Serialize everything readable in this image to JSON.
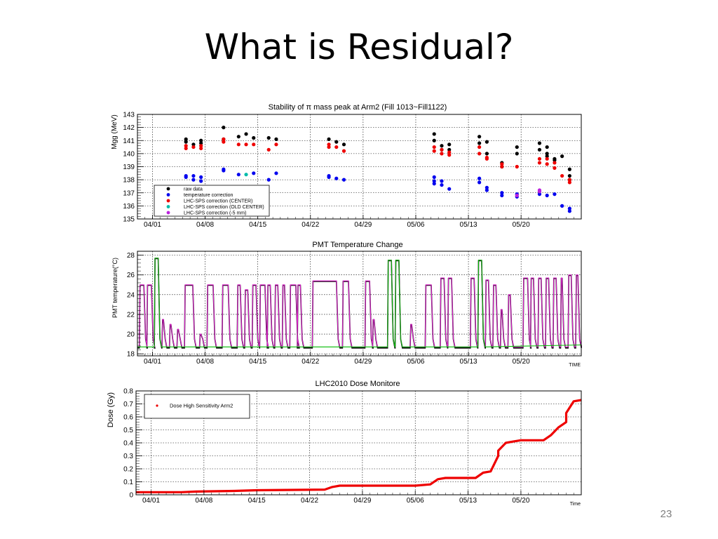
{
  "slide": {
    "title": "What is Residual?",
    "page_number": "23"
  },
  "colors": {
    "black": "#000000",
    "blue": "#0000ee",
    "red": "#ee0000",
    "green": "#00bb00",
    "magenta": "#dd22cc",
    "cyan": "#00bbaa",
    "purple": "#bb22dd"
  },
  "chart_data": [
    {
      "type": "scatter",
      "title": "Stability of π mass peak at Arm2 (Fill 1013~Fill1122)",
      "ylabel": "Mgg (MeV)",
      "xlabel": "",
      "xlim": [
        "2010-03-30",
        "2010-05-28"
      ],
      "ylim": [
        135,
        143
      ],
      "xticks": [
        "04/01",
        "04/08",
        "04/15",
        "04/22",
        "04/29",
        "05/06",
        "05/13",
        "05/20"
      ],
      "yticks": [
        "135",
        "136",
        "137",
        "138",
        "139",
        "140",
        "141",
        "142",
        "143"
      ],
      "grid": true,
      "legend_position": "bottom-left",
      "series": [
        {
          "name": "raw data",
          "color": "#000000",
          "points": [
            [
              "2010-04-05",
              141.1
            ],
            [
              "2010-04-05",
              140.9
            ],
            [
              "2010-04-06",
              140.7
            ],
            [
              "2010-04-07",
              141.0
            ],
            [
              "2010-04-07",
              140.8
            ],
            [
              "2010-04-10",
              142.0
            ],
            [
              "2010-04-10",
              141.1
            ],
            [
              "2010-04-12",
              141.3
            ],
            [
              "2010-04-13",
              141.5
            ],
            [
              "2010-04-14",
              141.2
            ],
            [
              "2010-04-16",
              141.2
            ],
            [
              "2010-04-17",
              141.1
            ],
            [
              "2010-04-24",
              141.1
            ],
            [
              "2010-04-25",
              140.9
            ],
            [
              "2010-04-26",
              140.7
            ],
            [
              "2010-05-08",
              141.5
            ],
            [
              "2010-05-08",
              141.0
            ],
            [
              "2010-05-09",
              140.3
            ],
            [
              "2010-05-09",
              140.6
            ],
            [
              "2010-05-10",
              140.7
            ],
            [
              "2010-05-10",
              140.3
            ],
            [
              "2010-05-14",
              141.3
            ],
            [
              "2010-05-14",
              140.8
            ],
            [
              "2010-05-15",
              140.9
            ],
            [
              "2010-05-15",
              140.0
            ],
            [
              "2010-05-17",
              139.3
            ],
            [
              "2010-05-17",
              139.0
            ],
            [
              "2010-05-19",
              140.5
            ],
            [
              "2010-05-19",
              140.0
            ],
            [
              "2010-05-22",
              140.8
            ],
            [
              "2010-05-22",
              140.3
            ],
            [
              "2010-05-23",
              140.5
            ],
            [
              "2010-05-23",
              140.0
            ],
            [
              "2010-05-23",
              139.8
            ],
            [
              "2010-05-24",
              139.6
            ],
            [
              "2010-05-24",
              139.5
            ],
            [
              "2010-05-25",
              139.8
            ],
            [
              "2010-05-26",
              138.8
            ],
            [
              "2010-05-26",
              138.3
            ],
            [
              "2010-05-26",
              138.0
            ]
          ]
        },
        {
          "name": "temperature correction",
          "color": "#0000ee",
          "points": [
            [
              "2010-04-05",
              138.3
            ],
            [
              "2010-04-05",
              138.2
            ],
            [
              "2010-04-06",
              138.3
            ],
            [
              "2010-04-06",
              138.0
            ],
            [
              "2010-04-07",
              138.2
            ],
            [
              "2010-04-07",
              137.9
            ],
            [
              "2010-04-10",
              138.8
            ],
            [
              "2010-04-10",
              138.7
            ],
            [
              "2010-04-12",
              138.4
            ],
            [
              "2010-04-14",
              138.5
            ],
            [
              "2010-04-16",
              138.0
            ],
            [
              "2010-04-17",
              138.5
            ],
            [
              "2010-04-24",
              138.3
            ],
            [
              "2010-04-24",
              138.2
            ],
            [
              "2010-04-25",
              138.1
            ],
            [
              "2010-04-26",
              138.0
            ],
            [
              "2010-05-08",
              138.2
            ],
            [
              "2010-05-08",
              137.9
            ],
            [
              "2010-05-08",
              137.7
            ],
            [
              "2010-05-09",
              137.9
            ],
            [
              "2010-05-09",
              137.6
            ],
            [
              "2010-05-10",
              137.3
            ],
            [
              "2010-05-14",
              138.1
            ],
            [
              "2010-05-14",
              137.8
            ],
            [
              "2010-05-15",
              137.4
            ],
            [
              "2010-05-15",
              137.2
            ],
            [
              "2010-05-17",
              137.0
            ],
            [
              "2010-05-17",
              136.8
            ],
            [
              "2010-05-19",
              136.9
            ],
            [
              "2010-05-19",
              136.7
            ],
            [
              "2010-05-22",
              137.1
            ],
            [
              "2010-05-22",
              136.9
            ],
            [
              "2010-05-23",
              136.8
            ],
            [
              "2010-05-24",
              136.9
            ],
            [
              "2010-05-25",
              136.0
            ],
            [
              "2010-05-26",
              135.8
            ],
            [
              "2010-05-26",
              135.6
            ]
          ]
        },
        {
          "name": "LHC-SPS correction (CENTER)",
          "color": "#ee0000",
          "points": [
            [
              "2010-04-05",
              140.6
            ],
            [
              "2010-04-05",
              140.4
            ],
            [
              "2010-04-06",
              140.5
            ],
            [
              "2010-04-07",
              140.6
            ],
            [
              "2010-04-07",
              140.4
            ],
            [
              "2010-04-10",
              141.1
            ],
            [
              "2010-04-10",
              140.9
            ],
            [
              "2010-04-12",
              140.7
            ],
            [
              "2010-04-13",
              140.7
            ],
            [
              "2010-04-14",
              140.7
            ],
            [
              "2010-04-16",
              140.3
            ],
            [
              "2010-04-17",
              140.7
            ],
            [
              "2010-04-24",
              140.7
            ],
            [
              "2010-04-24",
              140.5
            ],
            [
              "2010-04-25",
              140.5
            ],
            [
              "2010-04-26",
              140.2
            ],
            [
              "2010-05-08",
              140.5
            ],
            [
              "2010-05-08",
              140.2
            ],
            [
              "2010-05-09",
              140.3
            ],
            [
              "2010-05-09",
              140.0
            ],
            [
              "2010-05-10",
              140.1
            ],
            [
              "2010-05-10",
              139.9
            ],
            [
              "2010-05-14",
              140.5
            ],
            [
              "2010-05-14",
              140.0
            ],
            [
              "2010-05-15",
              139.7
            ],
            [
              "2010-05-15",
              139.6
            ],
            [
              "2010-05-17",
              139.2
            ],
            [
              "2010-05-17",
              139.0
            ],
            [
              "2010-05-19",
              139.0
            ],
            [
              "2010-05-22",
              139.6
            ],
            [
              "2010-05-22",
              139.3
            ],
            [
              "2010-05-23",
              139.6
            ],
            [
              "2010-05-23",
              139.2
            ],
            [
              "2010-05-24",
              139.3
            ],
            [
              "2010-05-24",
              138.9
            ],
            [
              "2010-05-25",
              138.3
            ],
            [
              "2010-05-26",
              138.0
            ],
            [
              "2010-05-26",
              137.8
            ]
          ]
        },
        {
          "name": "LHC-SPS correction (OLD CENTER)",
          "color": "#00bbaa",
          "points": [
            [
              "2010-04-13",
              138.4
            ]
          ]
        },
        {
          "name": "LHC-SPS correction (-5 mm)",
          "color": "#bb22dd",
          "points": [
            [
              "2010-05-19",
              136.8
            ],
            [
              "2010-05-22",
              137.2
            ],
            [
              "2010-05-22",
              137.1
            ]
          ]
        }
      ]
    },
    {
      "type": "line",
      "title": "PMT Temperature Change",
      "ylabel": "PMT temperature(°C)",
      "xlabel": "TIME",
      "xlim": [
        "2010-03-30",
        "2010-05-28"
      ],
      "ylim": [
        17.8,
        28.4
      ],
      "xticks": [
        "04/01",
        "04/08",
        "04/15",
        "04/22",
        "04/29",
        "05/06",
        "05/13",
        "05/20"
      ],
      "yticks": [
        "18",
        "20",
        "22",
        "24",
        "26",
        "28"
      ],
      "grid": true,
      "baseline": 18.6,
      "series_colors": [
        "#000000",
        "#dd22cc",
        "#00bb00"
      ],
      "peaks": [
        [
          "2010-03-30",
          25.0,
          0.7
        ],
        [
          "2010-03-31",
          25.0,
          0.7
        ],
        [
          "2010-04-01",
          27.7,
          0.6
        ],
        [
          "2010-04-02",
          21.5,
          0.3
        ],
        [
          "2010-04-03",
          21.0,
          0.3
        ],
        [
          "2010-04-04",
          20.5,
          0.3
        ],
        [
          "2010-04-05",
          25.0,
          1.2
        ],
        [
          "2010-04-07",
          20.0,
          0.3
        ],
        [
          "2010-04-08",
          25.0,
          0.9
        ],
        [
          "2010-04-10",
          25.0,
          0.9
        ],
        [
          "2010-04-12",
          25.0,
          0.5
        ],
        [
          "2010-04-13",
          24.5,
          0.5
        ],
        [
          "2010-04-14",
          25.0,
          0.6
        ],
        [
          "2010-04-15",
          25.0,
          0.8
        ],
        [
          "2010-04-16",
          25.0,
          0.5
        ],
        [
          "2010-04-17",
          25.0,
          0.5
        ],
        [
          "2010-04-18",
          25.0,
          0.4
        ],
        [
          "2010-04-19",
          25.0,
          0.9
        ],
        [
          "2010-04-20",
          25.0,
          0.5
        ],
        [
          "2010-04-22",
          25.4,
          3.3
        ],
        [
          "2010-04-26",
          25.4,
          0.9
        ],
        [
          "2010-04-29",
          25.4,
          0.7
        ],
        [
          "2010-04-30",
          21.5,
          0.3
        ],
        [
          "2010-05-02",
          27.5,
          0.6
        ],
        [
          "2010-05-03",
          27.5,
          0.6
        ],
        [
          "2010-05-05",
          21.0,
          0.3
        ],
        [
          "2010-05-07",
          25.0,
          0.9
        ],
        [
          "2010-05-09",
          25.7,
          0.6
        ],
        [
          "2010-05-10",
          25.7,
          0.6
        ],
        [
          "2010-05-13",
          25.7,
          0.6
        ],
        [
          "2010-05-14",
          27.5,
          0.6
        ],
        [
          "2010-05-15",
          25.5,
          0.5
        ],
        [
          "2010-05-16",
          25.0,
          0.5
        ],
        [
          "2010-05-17",
          22.5,
          0.3
        ],
        [
          "2010-05-18",
          24.0,
          0.4
        ],
        [
          "2010-05-20",
          25.7,
          0.7
        ],
        [
          "2010-05-21",
          25.7,
          0.5
        ],
        [
          "2010-05-22",
          25.7,
          0.5
        ],
        [
          "2010-05-23",
          25.7,
          0.5
        ],
        [
          "2010-05-24",
          25.7,
          0.5
        ],
        [
          "2010-05-25",
          25.7,
          0.3
        ],
        [
          "2010-05-26",
          26.0,
          0.5
        ],
        [
          "2010-05-27",
          26.0,
          0.4
        ]
      ]
    },
    {
      "type": "line",
      "title": "LHC2010 Dose Monitore",
      "ylabel": "Dose (Gy)",
      "xlabel": "Time",
      "xlim": [
        "2010-03-30",
        "2010-05-28"
      ],
      "ylim": [
        0,
        0.8
      ],
      "xticks": [
        "04/01",
        "04/08",
        "04/15",
        "04/22",
        "04/29",
        "05/06",
        "05/13",
        "05/20"
      ],
      "yticks": [
        "0",
        "0.1",
        "0.2",
        "0.3",
        "0.4",
        "0.5",
        "0.6",
        "0.7",
        "0.8"
      ],
      "grid": true,
      "legend_position": "top-left",
      "series": [
        {
          "name": "Dose High Sensitivity Arm2",
          "color": "#ee0000",
          "points": [
            [
              "2010-03-30",
              0.02
            ],
            [
              "2010-04-05",
              0.02
            ],
            [
              "2010-04-07",
              0.025
            ],
            [
              "2010-04-12",
              0.03
            ],
            [
              "2010-04-15",
              0.035
            ],
            [
              "2010-04-24",
              0.04
            ],
            [
              "2010-04-25",
              0.06
            ],
            [
              "2010-04-26",
              0.07
            ],
            [
              "2010-05-06",
              0.07
            ],
            [
              "2010-05-08",
              0.08
            ],
            [
              "2010-05-09",
              0.12
            ],
            [
              "2010-05-10",
              0.13
            ],
            [
              "2010-05-14",
              0.13
            ],
            [
              "2010-05-15",
              0.17
            ],
            [
              "2010-05-16",
              0.18
            ],
            [
              "2010-05-17",
              0.3
            ],
            [
              "2010-05-17",
              0.34
            ],
            [
              "2010-05-18",
              0.4
            ],
            [
              "2010-05-19",
              0.41
            ],
            [
              "2010-05-20",
              0.42
            ],
            [
              "2010-05-23",
              0.42
            ],
            [
              "2010-05-24",
              0.46
            ],
            [
              "2010-05-25",
              0.52
            ],
            [
              "2010-05-26",
              0.56
            ],
            [
              "2010-05-26",
              0.63
            ],
            [
              "2010-05-27",
              0.72
            ],
            [
              "2010-05-28",
              0.73
            ]
          ]
        }
      ]
    }
  ]
}
